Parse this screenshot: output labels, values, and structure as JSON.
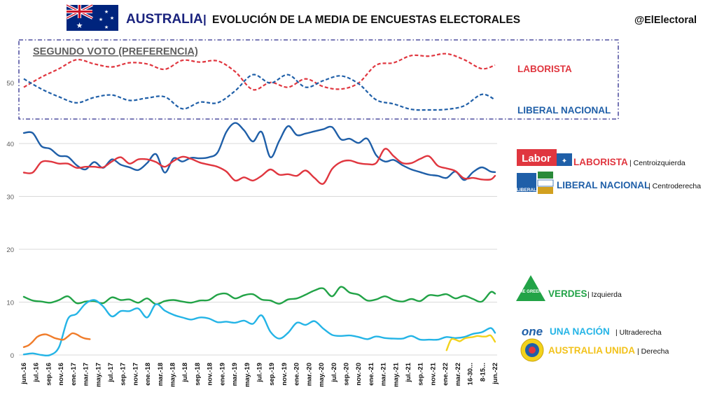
{
  "header": {
    "country": "AUSTRALIA",
    "separator": "|",
    "subtitle": "EVOLUCIÓN DE LA MEDIA DE ENCUESTAS ELECTORALES",
    "handle": "@ElElectoral"
  },
  "colors": {
    "laborista": "#e0363f",
    "liberal": "#1f5fa8",
    "verdes": "#22a347",
    "una_nacion": "#24b4e6",
    "australia_unida": "#f2d21b",
    "orange": "#f07c2a",
    "title_blue": "#1a237e",
    "box_border": "#2b2b8c"
  },
  "legend": {
    "laborista": {
      "name": "LABORISTA",
      "desc": "| Centroizquierda",
      "logo_text": "Labor"
    },
    "liberal": {
      "name": "LIBERAL NACIONAL",
      "desc": "| Centroderecha",
      "logo_text": "LIBERAL"
    },
    "verdes": {
      "name": "VERDES",
      "desc": "| Izquierda",
      "logo_text": "THE GREENS"
    },
    "una_nacion": {
      "name": "UNA NACIÓN",
      "desc": "| Ultraderecha",
      "logo_text": "one"
    },
    "australia_unida": {
      "name": "AUSTRALIA UNIDA",
      "desc": "| Derecha"
    }
  },
  "chart_data": [
    {
      "type": "line",
      "title": "SEGUNDO VOTO (PREFERENCIA)",
      "style": "dashed",
      "y_ticks": [
        50
      ],
      "ylim": [
        44,
        57
      ],
      "x_index_range": [
        0,
        107
      ],
      "series": [
        {
          "name": "LABORISTA",
          "color": "#e0363f",
          "x": [
            0,
            4,
            8,
            12,
            16,
            20,
            24,
            28,
            32,
            36,
            40,
            44,
            48,
            52,
            56,
            60,
            64,
            68,
            72,
            76,
            80,
            84,
            88,
            92,
            96,
            100,
            104,
            107
          ],
          "values": [
            49.2,
            50.9,
            52.3,
            53.8,
            53.1,
            52.6,
            53.3,
            53.1,
            52.2,
            53.7,
            53.4,
            53.6,
            51.8,
            48.8,
            50.0,
            49.2,
            50.6,
            49.3,
            48.9,
            49.9,
            52.9,
            53.3,
            54.5,
            54.4,
            54.8,
            53.8,
            52.3,
            52.9
          ]
        },
        {
          "name": "LIBERAL NACIONAL",
          "color": "#1f5fa8",
          "x": [
            0,
            4,
            8,
            12,
            16,
            20,
            24,
            28,
            32,
            36,
            40,
            44,
            48,
            52,
            56,
            60,
            64,
            68,
            72,
            76,
            80,
            84,
            88,
            92,
            96,
            100,
            104,
            107
          ],
          "values": [
            50.6,
            48.9,
            47.6,
            46.6,
            47.5,
            47.9,
            47.0,
            47.4,
            47.6,
            45.6,
            46.7,
            46.6,
            48.6,
            51.3,
            49.9,
            51.3,
            49.2,
            50.3,
            51.1,
            49.8,
            47.1,
            46.4,
            45.5,
            45.4,
            45.5,
            46.1,
            48.0,
            47.1
          ]
        }
      ],
      "labels": [
        "LABORISTA",
        "LIBERAL NACIONAL"
      ]
    },
    {
      "type": "line",
      "ylim": [
        0,
        45
      ],
      "y_ticks": [
        0,
        10,
        20,
        30,
        40
      ],
      "x_tick_labels": [
        "jun.-16",
        "jul.-16",
        "sep.-16",
        "nov.-16",
        "ene.-17",
        "mar.-17",
        "may.-17",
        "jul.-17",
        "sep.-17",
        "nov.-17",
        "ene.-18",
        "mar.-18",
        "may.-18",
        "jul.-18",
        "sep.-18",
        "nov.-18",
        "ene.-19",
        "mar.-19",
        "may.-19",
        "jul.-19",
        "sep.-19",
        "nov.-19",
        "ene.-20",
        "mar.-20",
        "may.-20",
        "jul.-20",
        "sep.-20",
        "nov.-20",
        "ene.-21",
        "mar.-21",
        "may.-21",
        "jul.-21",
        "sep.-21",
        "nov.-21",
        "ene.-22",
        "mar.-22",
        "16-30...",
        "8-15...",
        "jun.-22"
      ],
      "series": [
        {
          "name": "LIBERAL NACIONAL",
          "color": "#1f5fa8",
          "x": [
            0,
            2,
            4,
            6,
            8,
            10,
            12,
            14,
            16,
            18,
            20,
            22,
            24,
            26,
            28,
            30,
            32,
            34,
            36,
            38,
            40,
            42,
            44,
            46,
            48,
            50,
            52,
            54,
            56,
            58,
            60,
            62,
            64,
            66,
            68,
            70,
            72,
            74,
            76,
            78,
            80,
            82,
            84,
            86,
            88,
            90,
            92,
            94,
            96,
            98,
            100,
            102,
            104,
            106,
            107
          ],
          "values": [
            42,
            42,
            39.5,
            39,
            37.7,
            37.5,
            35.9,
            35.1,
            36.5,
            35.4,
            37,
            36,
            35.5,
            35,
            36.3,
            38,
            34.5,
            37.2,
            36.6,
            37.3,
            37.2,
            37.4,
            38.3,
            42.2,
            43.9,
            42.5,
            40.4,
            42.2,
            37.4,
            40.5,
            43.3,
            41.6,
            41.9,
            42.3,
            42.7,
            43.1,
            40.8,
            40.9,
            40.1,
            40.9,
            37.8,
            36.6,
            36.9,
            35.9,
            35.1,
            34.6,
            34.1,
            33.9,
            33.5,
            34.7,
            33.1,
            34.6,
            35.5,
            34.7,
            34.6
          ]
        },
        {
          "name": "LABORISTA",
          "color": "#e0363f",
          "x": [
            0,
            2,
            4,
            6,
            8,
            10,
            12,
            14,
            16,
            18,
            20,
            22,
            24,
            26,
            28,
            30,
            32,
            34,
            36,
            38,
            40,
            42,
            44,
            46,
            48,
            50,
            52,
            54,
            56,
            58,
            60,
            62,
            64,
            66,
            68,
            70,
            72,
            74,
            76,
            78,
            80,
            82,
            84,
            86,
            88,
            90,
            92,
            94,
            96,
            98,
            100,
            102,
            104,
            106,
            107
          ],
          "values": [
            34.5,
            34.5,
            36.5,
            36.6,
            36.2,
            36.2,
            35.4,
            35.6,
            35.6,
            35.5,
            36.6,
            37.4,
            36.2,
            37,
            37,
            36.5,
            35.6,
            36.7,
            37.5,
            37.1,
            36.4,
            36,
            35.6,
            34.7,
            33,
            33.6,
            33,
            33.9,
            35.1,
            34.1,
            34.2,
            33.9,
            34.9,
            33.5,
            32.4,
            35.2,
            36.5,
            36.8,
            36.3,
            36.1,
            36.3,
            39,
            37.6,
            36.3,
            36.3,
            37.1,
            37.6,
            35.8,
            35.3,
            34.8,
            33.4,
            33.5,
            33.2,
            33.2,
            33.9
          ]
        },
        {
          "name": "VERDES",
          "color": "#22a347",
          "x": [
            0,
            2,
            4,
            6,
            8,
            10,
            12,
            14,
            16,
            18,
            20,
            22,
            24,
            26,
            28,
            30,
            32,
            34,
            36,
            38,
            40,
            42,
            44,
            46,
            48,
            50,
            52,
            54,
            56,
            58,
            60,
            62,
            64,
            66,
            68,
            70,
            72,
            74,
            76,
            78,
            80,
            82,
            84,
            86,
            88,
            90,
            92,
            94,
            96,
            98,
            100,
            102,
            104,
            106,
            107
          ],
          "values": [
            11,
            10.3,
            10.1,
            9.9,
            10.4,
            11.1,
            9.8,
            10.1,
            10.2,
            9.8,
            10.9,
            10.4,
            10.5,
            9.9,
            10.7,
            9.6,
            10.2,
            10.4,
            10.1,
            9.9,
            10.3,
            10.4,
            11.4,
            11.6,
            10.7,
            11.3,
            11.5,
            10.5,
            10.3,
            9.7,
            10.5,
            10.7,
            11.4,
            12.2,
            12.6,
            11.1,
            12.9,
            11.8,
            11.4,
            10.3,
            10.5,
            11.1,
            10.4,
            10.1,
            10.6,
            10.2,
            11.3,
            11.2,
            11.5,
            10.7,
            11.2,
            10.6,
            10.1,
            11.9,
            11.6
          ]
        },
        {
          "name": "UNA NACIÓN",
          "color": "#24b4e6",
          "x": [
            0,
            2,
            4,
            6,
            8,
            10,
            12,
            14,
            16,
            18,
            20,
            22,
            24,
            26,
            28,
            30,
            32,
            34,
            36,
            38,
            40,
            42,
            44,
            46,
            48,
            50,
            52,
            54,
            56,
            58,
            60,
            62,
            64,
            66,
            68,
            70,
            72,
            74,
            76,
            78,
            80,
            82,
            84,
            86,
            88,
            90,
            92,
            94,
            96,
            98,
            100,
            102,
            104,
            106,
            107
          ],
          "values": [
            0.1,
            0.3,
            0,
            0,
            1.5,
            6.8,
            7.8,
            9.7,
            10.4,
            9.2,
            7.3,
            8.3,
            8.3,
            8.8,
            7.1,
            9.6,
            8.4,
            7.6,
            7.1,
            6.7,
            7.1,
            6.9,
            6.2,
            6.3,
            6.1,
            6.5,
            5.9,
            7.5,
            4.4,
            3.1,
            4.2,
            6.1,
            5.7,
            6.4,
            5,
            3.8,
            3.6,
            3.7,
            3.4,
            3,
            3.5,
            3.2,
            3.1,
            3.1,
            3.6,
            2.9,
            2.9,
            2.9,
            3.4,
            3.2,
            3.4,
            4,
            4.3,
            5.1,
            4.2
          ]
        },
        {
          "name": "",
          "color": "#f07c2a",
          "x": [
            0,
            1,
            2,
            3,
            4,
            5,
            6,
            7,
            8,
            9,
            10,
            11,
            12,
            13,
            14,
            15
          ],
          "values": [
            1.5,
            1.8,
            2.5,
            3.4,
            3.8,
            3.9,
            3.6,
            3.2,
            3.0,
            2.9,
            3.5,
            4.1,
            3.9,
            3.4,
            3.1,
            3.0
          ]
        },
        {
          "name": "AUSTRALIA UNIDA",
          "color": "#f2d21b",
          "x": [
            96,
            97,
            98,
            99,
            100,
            101,
            102,
            103,
            104,
            105,
            106,
            107
          ],
          "values": [
            0.9,
            2.9,
            2.9,
            2.6,
            3.1,
            3.3,
            3.4,
            3.6,
            3.5,
            3.5,
            3.7,
            2.5
          ]
        }
      ]
    }
  ]
}
